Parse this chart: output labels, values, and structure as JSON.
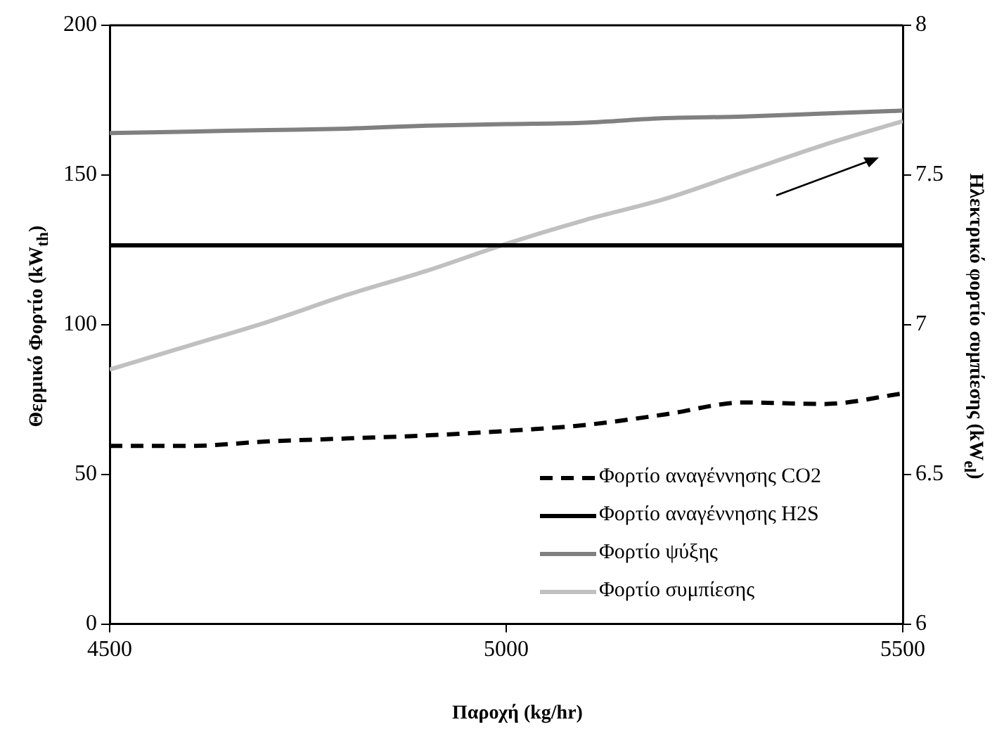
{
  "chart_data": {
    "type": "line",
    "xlabel": "Παροχή (kg/hr)",
    "ylabel": "Θερμικό Φορτίο (kW$_{th}$)",
    "y2label": "Ηλεκτρικό φορτίο συμπίεσης (kW$_{el}$)",
    "x": [
      4500,
      4600,
      4700,
      4800,
      4900,
      5000,
      5100,
      5200,
      5300,
      5400,
      5500
    ],
    "series": [
      {
        "name": "Φορτίο αναγέννησης CO2",
        "color": "#000000",
        "line_style": "dashed",
        "values": [
          59.5,
          59.5,
          61,
          62,
          63,
          64.5,
          66.5,
          70,
          74,
          73.5,
          77
        ]
      },
      {
        "name": "Φορτίο αναγέννησης H2S",
        "color": "#000000",
        "values": [
          126.5,
          126.5,
          126.5,
          126.5,
          126.5,
          126.5,
          126.5,
          126.5,
          126.5,
          126.5,
          126.5
        ]
      },
      {
        "name": "Φορτίο ψύξης",
        "color": "#808080",
        "values": [
          164,
          164.5,
          165,
          165.5,
          166.5,
          167,
          167.5,
          169,
          169.5,
          170.5,
          171.5
        ]
      },
      {
        "name": "Φορτίο συμπίεσης",
        "color": "#c0c0c0",
        "axis": "y2",
        "values": [
          6.85,
          6.93,
          7.01,
          7.1,
          7.18,
          7.27,
          7.35,
          7.42,
          7.51,
          7.6,
          7.68
        ]
      }
    ],
    "xlim": [
      4500,
      5500
    ],
    "xticks": [
      4500,
      5000,
      5500
    ],
    "ylim": [
      0,
      200
    ],
    "yticks": [
      0,
      50,
      100,
      150,
      200
    ],
    "y2lim": [
      6,
      8
    ],
    "y2ticks": [
      6,
      6.5,
      7,
      7.5,
      8
    ],
    "grid": false,
    "legend": "bottom right",
    "marker": "none",
    "line_style": "solid"
  }
}
